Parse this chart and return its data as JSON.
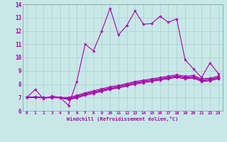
{
  "xlabel": "Windchill (Refroidissement éolien,°C)",
  "bg_color": "#c8e8e8",
  "grid_color": "#aacece",
  "line_color": "#aa00aa",
  "xlim": [
    -0.5,
    23.5
  ],
  "ylim": [
    6,
    14
  ],
  "xticks": [
    0,
    1,
    2,
    3,
    4,
    5,
    6,
    7,
    8,
    9,
    10,
    11,
    12,
    13,
    14,
    15,
    16,
    17,
    18,
    19,
    20,
    21,
    22,
    23
  ],
  "yticks": [
    6,
    7,
    8,
    9,
    10,
    11,
    12,
    13,
    14
  ],
  "lines": [
    [
      7.0,
      7.6,
      6.9,
      7.1,
      7.0,
      6.4,
      8.2,
      11.0,
      10.5,
      12.0,
      13.7,
      11.7,
      12.4,
      13.5,
      12.5,
      12.55,
      13.1,
      12.65,
      12.9,
      9.85,
      9.15,
      8.5,
      9.6,
      8.8
    ],
    [
      7.0,
      7.05,
      7.0,
      7.0,
      7.0,
      7.0,
      7.15,
      7.35,
      7.5,
      7.65,
      7.8,
      7.9,
      8.05,
      8.2,
      8.3,
      8.4,
      8.5,
      8.6,
      8.7,
      8.6,
      8.65,
      8.4,
      8.45,
      8.6
    ],
    [
      7.0,
      7.02,
      6.99,
      7.0,
      6.99,
      6.92,
      7.08,
      7.28,
      7.42,
      7.57,
      7.72,
      7.82,
      7.97,
      8.12,
      8.22,
      8.32,
      8.42,
      8.52,
      8.62,
      8.52,
      8.57,
      8.32,
      8.37,
      8.52
    ],
    [
      7.0,
      7.01,
      6.98,
      6.99,
      6.98,
      6.88,
      7.02,
      7.22,
      7.36,
      7.51,
      7.66,
      7.76,
      7.91,
      8.06,
      8.16,
      8.26,
      8.36,
      8.46,
      8.56,
      8.46,
      8.51,
      8.26,
      8.31,
      8.46
    ],
    [
      7.0,
      7.0,
      6.97,
      6.98,
      6.97,
      6.84,
      6.96,
      7.16,
      7.3,
      7.45,
      7.6,
      7.7,
      7.85,
      8.0,
      8.1,
      8.2,
      8.3,
      8.4,
      8.5,
      8.4,
      8.45,
      8.2,
      8.25,
      8.4
    ]
  ]
}
